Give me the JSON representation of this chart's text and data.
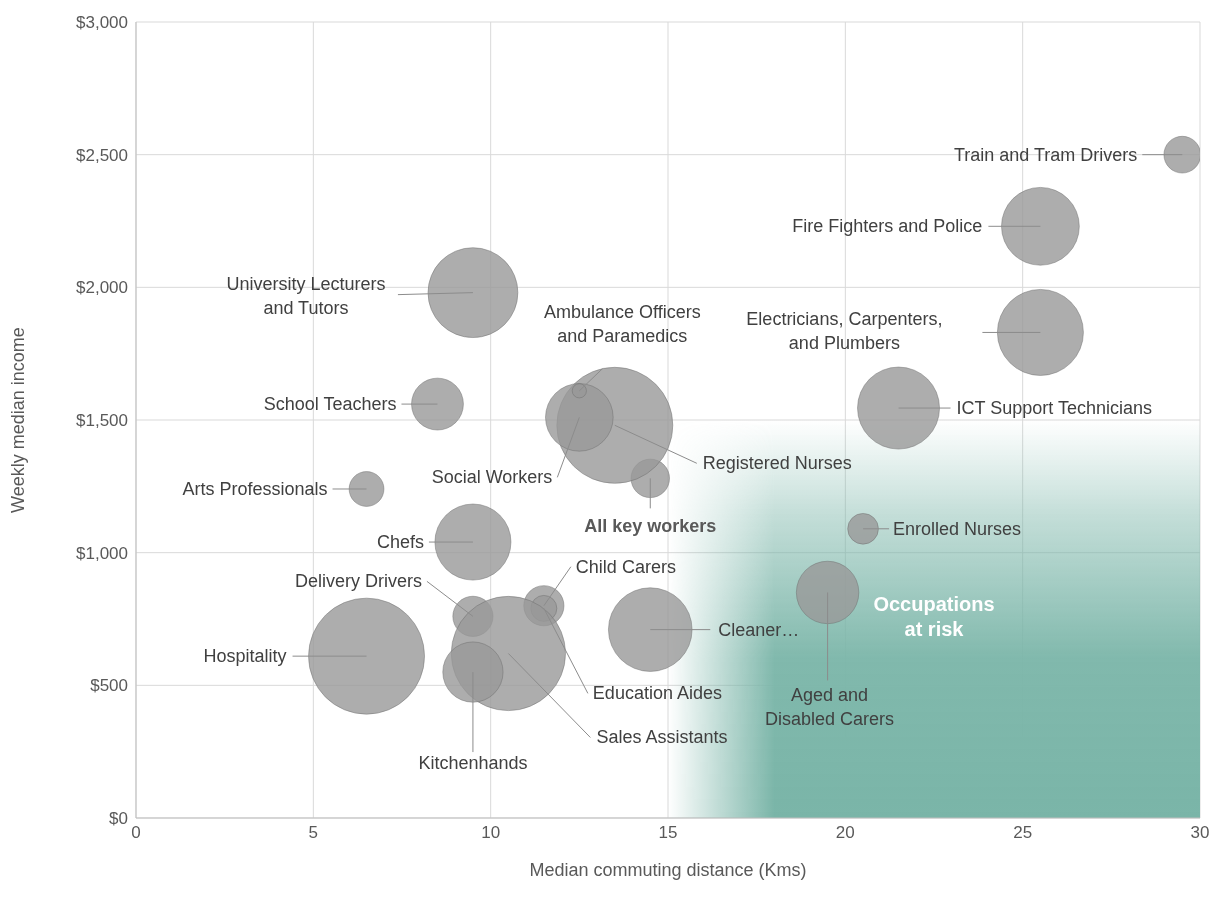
{
  "chart_data": {
    "type": "bubble",
    "xlabel": "Median commuting distance (Kms)",
    "ylabel": "Weekly median income",
    "xlim": [
      0,
      30
    ],
    "xticks": [
      0,
      5,
      10,
      15,
      20,
      25,
      30
    ],
    "ylim": [
      0,
      3000
    ],
    "yticks": [
      {
        "value": 0,
        "label": "$0"
      },
      {
        "value": 500,
        "label": "$500"
      },
      {
        "value": 1000,
        "label": "$1,000"
      },
      {
        "value": 1500,
        "label": "$1,500"
      },
      {
        "value": 2000,
        "label": "$2,000"
      },
      {
        "value": 2500,
        "label": "$2,500"
      },
      {
        "value": 3000,
        "label": "$3,000"
      }
    ],
    "grid": true,
    "legend": false,
    "series": [
      {
        "color": "#999999",
        "x": [
          29.5,
          25.5,
          25.5,
          21.5,
          20.5,
          19.5,
          14.5,
          14.5,
          13.5,
          12.5,
          12.5,
          9.5,
          8.5,
          6.5,
          9.5,
          9.5,
          11.5,
          11.5,
          6.5,
          10.5,
          9.5
        ],
        "values": [
          2500,
          2230,
          1830,
          1545,
          1090,
          850,
          710,
          1280,
          1480,
          1510,
          1610,
          1980,
          1560,
          1240,
          1040,
          760,
          800,
          790,
          610,
          620,
          550
        ],
        "sizes": [
          0.1,
          0.45,
          0.55,
          0.5,
          0.07,
          0.29,
          0.52,
          0.11,
          1,
          0.34,
          0.015,
          0.6,
          0.2,
          0.09,
          0.43,
          0.12,
          0.12,
          0.05,
          1,
          0.97,
          0.27
        ]
      }
    ],
    "bands": [
      {
        "axis": "x",
        "from": 15,
        "to": 30,
        "label": "Occupations at risk",
        "color": "#7ab5a8"
      }
    ],
    "annotations": [
      {
        "text": "Train and Tram Drivers",
        "x": 29.5,
        "y": 2500
      },
      "Fire Fighters and Police",
      "Electricians, Carpenters, and Plumbers",
      "ICT Support Technicians",
      {
        "text": "Enrolled Nurses",
        "x": 20.5,
        "y": 1090
      },
      {
        "text": "Aged and Disabled Carers",
        "x": 19.5,
        "y": 850
      },
      "Cleaner…",
      {
        "text": "All key workers",
        "x": 14.5,
        "y": 1280
      },
      {
        "text": "Registered Nurses",
        "x": 13.5,
        "y": 1480
      },
      {
        "text": "Social Workers",
        "x": 12.5,
        "y": 1510
      },
      {
        "text": "Ambulance Officers and Paramedics",
        "x": 12.5,
        "y": 1610
      },
      "University Lecturers and Tutors",
      {
        "text": "School Teachers",
        "x": 8.5,
        "y": 1560
      },
      {
        "text": "Arts Professionals",
        "x": 6.5,
        "y": 1240
      },
      {
        "text": "Chefs",
        "x": 9.5,
        "y": 1040
      },
      {
        "text": "Delivery Drivers",
        "x": 9.5,
        "y": 760
      },
      {
        "text": "Child Carers",
        "x": 11.5,
        "y": 800
      },
      {
        "text": "Education Aides",
        "x": 11.5,
        "y": 790
      },
      "Hospitality",
      {
        "text": "Sales Assistants",
        "x": 10.5,
        "y": 620
      },
      {
        "text": "Kitchenhands",
        "x": 9.5,
        "y": 550
      }
    ]
  }
}
